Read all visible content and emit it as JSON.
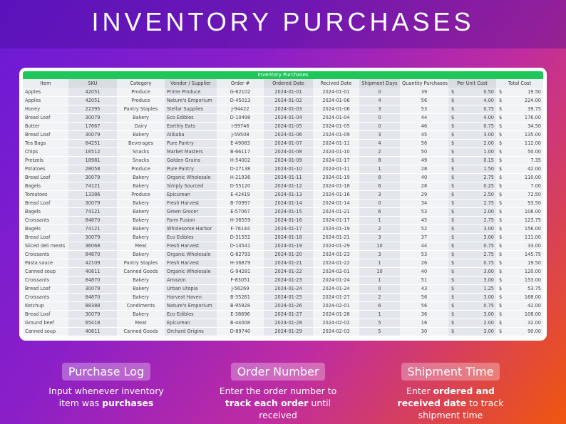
{
  "header": {
    "title": "INVENTORY PURCHASES"
  },
  "table": {
    "title": "Inventory Purchases",
    "currency": "$",
    "columns": [
      "Item",
      "SKU",
      "Category",
      "Vendor / Supplier",
      "Order #",
      "Ordered Date",
      "Recived Date",
      "Shipment Days",
      "Quantity Purchases",
      "Per Unit Cost",
      "Total Cost"
    ],
    "rows": [
      [
        "Apples",
        "42051",
        "Produce",
        "Prime Produce",
        "G-62102",
        "2024-01-01",
        "2024-01-01",
        "0",
        "39",
        "0.50",
        "19.50"
      ],
      [
        "Apples",
        "42051",
        "Produce",
        "Nature's Emporium",
        "D-45013",
        "2024-01-02",
        "2024-01-06",
        "4",
        "56",
        "4.00",
        "224.00"
      ],
      [
        "Honey",
        "22395",
        "Pantry Staples",
        "Stellar Supplies",
        "J-94422",
        "2024-01-03",
        "2024-01-06",
        "3",
        "53",
        "0.75",
        "39.75"
      ],
      [
        "Bread Loaf",
        "30079",
        "Bakery",
        "Eco Edibles",
        "D-10498",
        "2024-01-04",
        "2024-01-04",
        "0",
        "44",
        "4.00",
        "176.00"
      ],
      [
        "Butter",
        "17667",
        "Dairy",
        "Earthly Eats",
        "I-99746",
        "2024-01-05",
        "2024-01-05",
        "0",
        "46",
        "0.75",
        "34.50"
      ],
      [
        "Bread Loaf",
        "30079",
        "Bakery",
        "Alibaba",
        "J-59508",
        "2024-01-06",
        "2024-01-09",
        "3",
        "45",
        "3.00",
        "135.00"
      ],
      [
        "Tea Bags",
        "64251",
        "Beverages",
        "Pure Pantry",
        "E-49083",
        "2024-01-07",
        "2024-01-11",
        "4",
        "56",
        "2.00",
        "112.00"
      ],
      [
        "Chips",
        "16512",
        "Snacks",
        "Market Masters",
        "B-66117",
        "2024-01-08",
        "2024-01-10",
        "2",
        "50",
        "1.00",
        "50.00"
      ],
      [
        "Pretzels",
        "18981",
        "Snacks",
        "Golden Grains",
        "H-54002",
        "2024-01-09",
        "2024-01-17",
        "8",
        "49",
        "0.15",
        "7.35"
      ],
      [
        "Potatoes",
        "28058",
        "Produce",
        "Pure Pantry",
        "D-27138",
        "2024-01-10",
        "2024-01-11",
        "1",
        "28",
        "1.50",
        "42.00"
      ],
      [
        "Bread Loaf",
        "30079",
        "Bakery",
        "Organic Wholesale",
        "H-21936",
        "2024-01-11",
        "2024-01-19",
        "8",
        "40",
        "2.75",
        "110.00"
      ],
      [
        "Bagels",
        "74121",
        "Bakery",
        "Simply Sourced",
        "D-55120",
        "2024-01-12",
        "2024-01-18",
        "6",
        "28",
        "0.25",
        "7.00"
      ],
      [
        "Tomatoes",
        "13386",
        "Produce",
        "Epicurean",
        "E-42419",
        "2024-01-13",
        "2024-01-16",
        "3",
        "29",
        "2.50",
        "72.50"
      ],
      [
        "Bread Loaf",
        "30079",
        "Bakery",
        "Fresh Harvest",
        "B-70997",
        "2024-01-14",
        "2024-01-14",
        "0",
        "34",
        "2.75",
        "93.50"
      ],
      [
        "Bagels",
        "74121",
        "Bakery",
        "Green Grocer",
        "E-57067",
        "2024-01-15",
        "2024-01-21",
        "6",
        "53",
        "2.00",
        "106.00"
      ],
      [
        "Croissants",
        "84870",
        "Bakery",
        "Farm Fusion",
        "H-36559",
        "2024-01-16",
        "2024-01-17",
        "1",
        "45",
        "2.75",
        "123.75"
      ],
      [
        "Bagels",
        "74121",
        "Bakery",
        "Wholesome Harbor",
        "F-76144",
        "2024-01-17",
        "2024-01-19",
        "2",
        "52",
        "3.00",
        "156.00"
      ],
      [
        "Bread Loaf",
        "30079",
        "Bakery",
        "Eco Edibles",
        "D-31552",
        "2024-01-18",
        "2024-01-21",
        "3",
        "37",
        "3.00",
        "111.00"
      ],
      [
        "Sliced deli meats",
        "36068",
        "Meat",
        "Fresh Harvest",
        "D-14541",
        "2024-01-19",
        "2024-01-29",
        "10",
        "44",
        "0.75",
        "33.00"
      ],
      [
        "Croissants",
        "84870",
        "Bakery",
        "Organic Wholesale",
        "G-82793",
        "2024-01-20",
        "2024-01-23",
        "3",
        "53",
        "2.75",
        "145.75"
      ],
      [
        "Pasta sauce",
        "42109",
        "Pantry Staples",
        "Fresh Harvest",
        "H-36879",
        "2024-01-21",
        "2024-01-22",
        "1",
        "26",
        "0.75",
        "19.50"
      ],
      [
        "Canned soup",
        "40611",
        "Canned Goods",
        "Organic Wholesale",
        "G-94281",
        "2024-01-22",
        "2024-02-01",
        "10",
        "40",
        "3.00",
        "120.00"
      ],
      [
        "Croissants",
        "84870",
        "Bakery",
        "Amazon",
        "F-83051",
        "2024-01-23",
        "2024-01-24",
        "1",
        "51",
        "3.00",
        "153.00"
      ],
      [
        "Bread Loaf",
        "30079",
        "Bakery",
        "Urban Utopia",
        "J-56269",
        "2024-01-24",
        "2024-01-24",
        "0",
        "43",
        "1.25",
        "53.75"
      ],
      [
        "Croissants",
        "84870",
        "Bakery",
        "Harvest Haven",
        "B-35261",
        "2024-01-25",
        "2024-01-27",
        "2",
        "56",
        "3.00",
        "168.00"
      ],
      [
        "Ketchup",
        "88388",
        "Condiments",
        "Nature's Emporium",
        "B-95928",
        "2024-01-26",
        "2024-02-01",
        "6",
        "56",
        "0.75",
        "42.00"
      ],
      [
        "Bread Loaf",
        "30079",
        "Bakery",
        "Eco Edibles",
        "E-38896",
        "2024-01-27",
        "2024-01-28",
        "1",
        "36",
        "3.00",
        "108.00"
      ],
      [
        "Ground beef",
        "65418",
        "Meat",
        "Epicurean",
        "B-44008",
        "2024-01-28",
        "2024-02-02",
        "5",
        "16",
        "2.00",
        "32.00"
      ],
      [
        "Canned soup",
        "40611",
        "Canned Goods",
        "Orchard Origins",
        "D-89740",
        "2024-01-29",
        "2024-02-03",
        "5",
        "30",
        "3.00",
        "90.00"
      ]
    ]
  },
  "features": [
    {
      "title": "Purchase Log",
      "description": [
        {
          "text": "Input whenever inventory item was ",
          "bold": false
        },
        {
          "text": "purchases",
          "bold": true
        }
      ]
    },
    {
      "title": "Order Number",
      "description": [
        {
          "text": "Enter the order number to ",
          "bold": false
        },
        {
          "text": "track each order",
          "bold": true
        },
        {
          "text": " until received",
          "bold": false
        }
      ]
    },
    {
      "title": "Shipment Time",
      "description": [
        {
          "text": "Enter ",
          "bold": false
        },
        {
          "text": "ordered and received date",
          "bold": true
        },
        {
          "text": " to track shipment time",
          "bold": false
        }
      ]
    }
  ]
}
